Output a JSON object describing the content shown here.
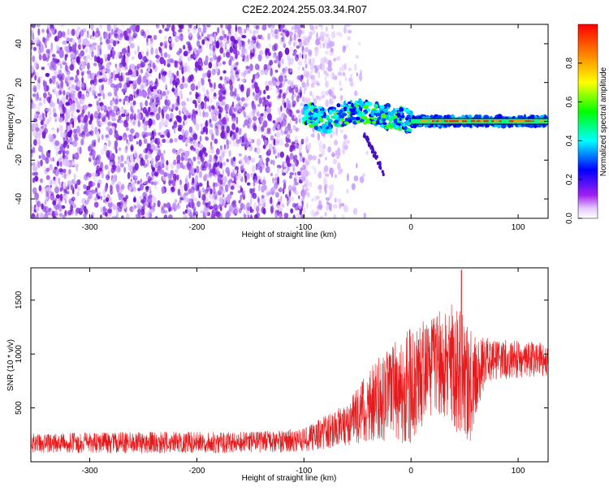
{
  "title": "C2E2.2024.255.03.34.R07",
  "colors": {
    "spectrogram_low": "#8a2be2",
    "snr_line": "#e41a1c",
    "center_line": "#000000"
  },
  "chart_data": [
    {
      "type": "heatmap",
      "name": "spectrogram",
      "xlabel": "Height of straight line (km)",
      "ylabel": "Frequency (Hz)",
      "xlim": [
        -355,
        128
      ],
      "ylim": [
        -50,
        50
      ],
      "x_ticks": [
        -300,
        -200,
        -100,
        0,
        100
      ],
      "x_tick_labels": [
        "-300",
        "-200",
        "-100",
        "0",
        "100"
      ],
      "y_ticks": [
        -40,
        -20,
        0,
        20,
        40
      ],
      "y_tick_labels": [
        "-40",
        "-20",
        "0",
        "20",
        "40"
      ],
      "colorbar": {
        "label": "Normalized spectral amplitude",
        "range": [
          0.0,
          1.0
        ],
        "ticks": [
          0.0,
          0.2,
          0.4,
          0.6,
          0.8
        ],
        "tick_labels": [
          "0.0",
          "0.2",
          "0.4",
          "0.6",
          "0.8"
        ],
        "colormap": [
          "#ffffff",
          "#e6ccff",
          "#a020f0",
          "#0000ff",
          "#00ffff",
          "#00ff00",
          "#ffff00",
          "#ff8000",
          "#ff0000"
        ]
      },
      "signal_track": [
        {
          "x": -100,
          "y": 5
        },
        {
          "x": -80,
          "y": 0
        },
        {
          "x": -60,
          "y": 4
        },
        {
          "x": -40,
          "y": 5
        },
        {
          "x": -20,
          "y": 2
        },
        {
          "x": 0,
          "y": 0
        },
        {
          "x": 128,
          "y": 0
        }
      ],
      "noise_region": [
        -355,
        -100
      ],
      "grid": false
    },
    {
      "type": "line",
      "name": "snr",
      "xlabel": "Height of straight line (km)",
      "ylabel": "SNR (10 * v/v)",
      "xlim": [
        -355,
        128
      ],
      "ylim": [
        0,
        1800
      ],
      "x_ticks": [
        -300,
        -200,
        -100,
        0,
        100
      ],
      "x_tick_labels": [
        "-300",
        "-200",
        "-100",
        "0",
        "100"
      ],
      "y_ticks": [
        500,
        1000,
        1500
      ],
      "y_tick_labels": [
        "500",
        "1000",
        "1500"
      ],
      "envelope": [
        {
          "x": -355,
          "mean": 170,
          "spread": 90
        },
        {
          "x": -250,
          "mean": 180,
          "spread": 100
        },
        {
          "x": -150,
          "mean": 180,
          "spread": 100
        },
        {
          "x": -100,
          "mean": 200,
          "spread": 110
        },
        {
          "x": -60,
          "mean": 350,
          "spread": 200
        },
        {
          "x": -30,
          "mean": 600,
          "spread": 400
        },
        {
          "x": 0,
          "mean": 700,
          "spread": 550
        },
        {
          "x": 20,
          "mean": 900,
          "spread": 450
        },
        {
          "x": 40,
          "mean": 900,
          "spread": 600
        },
        {
          "x": 55,
          "mean": 700,
          "spread": 550
        },
        {
          "x": 70,
          "mean": 950,
          "spread": 200
        },
        {
          "x": 128,
          "mean": 950,
          "spread": 150
        }
      ],
      "peak": {
        "x": 47,
        "y": 1780
      },
      "grid": false
    }
  ]
}
